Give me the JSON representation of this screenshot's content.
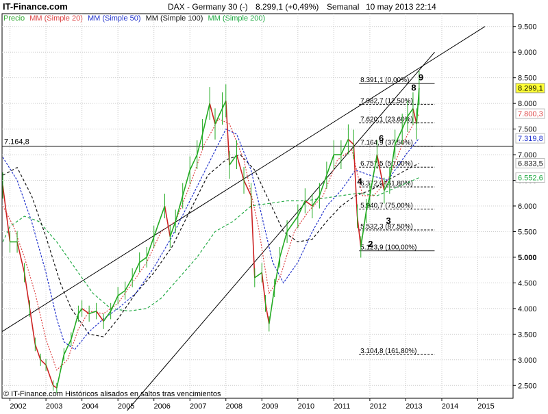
{
  "header": {
    "site": "IT-Finance.com",
    "title": "DAX - Germany 30 (-)",
    "price": "8.299,1 (+0,49%)",
    "period": "Semanal",
    "date": "10 may 2013 22:14"
  },
  "legend": [
    {
      "label": "Precio",
      "color": "#33aa33"
    },
    {
      "label": "MM (Simple 20)",
      "color": "#dd4444"
    },
    {
      "label": "MM (Simple 50)",
      "color": "#2233cc"
    },
    {
      "label": "MM (Simple 100)",
      "color": "#111111"
    },
    {
      "label": "MM (Simple 200)",
      "color": "#22aa44"
    }
  ],
  "footer": "© IT-Finance.com Históricos alisados en saltos tras vencimientos",
  "colors": {
    "price_up": "#22aa22",
    "price_down": "#cc2222",
    "sma20": "#dd4444",
    "sma50": "#2233cc",
    "sma100": "#111111",
    "sma200": "#22aa44",
    "grid": "#cccccc",
    "last_price_bg": "#ffff33"
  },
  "chart_data": {
    "type": "line",
    "x": {
      "range": [
        2001.78,
        2015.98
      ],
      "ticks": [
        2002,
        2003,
        2004,
        2005,
        2006,
        2007,
        2008,
        2009,
        2010,
        2011,
        2012,
        2013,
        2014,
        2015
      ],
      "tick_labels": [
        "2002",
        "2003",
        "2004",
        "2005",
        "2006",
        "2007",
        "2008",
        "2009",
        "2010",
        "2011",
        "2012",
        "2013",
        "2014",
        "2015"
      ]
    },
    "y": {
      "range": [
        2250,
        9750
      ],
      "ticks": [
        2500,
        3000,
        3500,
        4000,
        4500,
        5000,
        5500,
        6000,
        6500,
        7000,
        7500,
        8000,
        8500,
        9000,
        9500
      ],
      "tick_labels": [
        "2.500",
        "3.000",
        "3.500",
        "4.000",
        "4.500",
        "5.000",
        "5.500",
        "6.000",
        "6.500",
        "7.000",
        "7.500",
        "8.000",
        "8.500",
        "9.000",
        "9.500"
      ],
      "bold_tick": "5.000"
    },
    "grid": true,
    "legend_position": "top-left",
    "series": [
      {
        "name": "Precio",
        "key": "price",
        "values": [
          [
            2001.8,
            6400
          ],
          [
            2002.0,
            5300
          ],
          [
            2002.2,
            5300
          ],
          [
            2002.4,
            4700
          ],
          [
            2002.55,
            4000
          ],
          [
            2002.7,
            3300
          ],
          [
            2002.85,
            3000
          ],
          [
            2003.0,
            2900
          ],
          [
            2003.2,
            2500
          ],
          [
            2003.3,
            2450
          ],
          [
            2003.5,
            3100
          ],
          [
            2003.7,
            3400
          ],
          [
            2003.9,
            3900
          ],
          [
            2004.0,
            4000
          ],
          [
            2004.2,
            3900
          ],
          [
            2004.4,
            3950
          ],
          [
            2004.6,
            3750
          ],
          [
            2004.8,
            3950
          ],
          [
            2005.0,
            4250
          ],
          [
            2005.2,
            4350
          ],
          [
            2005.4,
            4600
          ],
          [
            2005.6,
            4900
          ],
          [
            2005.8,
            5000
          ],
          [
            2006.0,
            5400
          ],
          [
            2006.3,
            6000
          ],
          [
            2006.45,
            5400
          ],
          [
            2006.6,
            5700
          ],
          [
            2006.8,
            6200
          ],
          [
            2007.0,
            6700
          ],
          [
            2007.2,
            7000
          ],
          [
            2007.35,
            7400
          ],
          [
            2007.55,
            8000
          ],
          [
            2007.7,
            7600
          ],
          [
            2007.9,
            7900
          ],
          [
            2008.0,
            8050
          ],
          [
            2008.1,
            6800
          ],
          [
            2008.3,
            7000
          ],
          [
            2008.5,
            6500
          ],
          [
            2008.7,
            6200
          ],
          [
            2008.8,
            4600
          ],
          [
            2009.0,
            4700
          ],
          [
            2009.1,
            4100
          ],
          [
            2009.2,
            3700
          ],
          [
            2009.35,
            4400
          ],
          [
            2009.5,
            5000
          ],
          [
            2009.7,
            5500
          ],
          [
            2010.0,
            5800
          ],
          [
            2010.2,
            6100
          ],
          [
            2010.4,
            6000
          ],
          [
            2010.6,
            6200
          ],
          [
            2010.8,
            6600
          ],
          [
            2011.0,
            7000
          ],
          [
            2011.2,
            7000
          ],
          [
            2011.4,
            7300
          ],
          [
            2011.55,
            7200
          ],
          [
            2011.65,
            5800
          ],
          [
            2011.75,
            5200
          ],
          [
            2011.9,
            5900
          ],
          [
            2012.0,
            6200
          ],
          [
            2012.2,
            7000
          ],
          [
            2012.4,
            6300
          ],
          [
            2012.55,
            6500
          ],
          [
            2012.7,
            7200
          ],
          [
            2012.9,
            7500
          ],
          [
            2013.05,
            7750
          ],
          [
            2013.2,
            7900
          ],
          [
            2013.3,
            7600
          ],
          [
            2013.37,
            8299
          ]
        ]
      },
      {
        "name": "MM (Simple 20)",
        "key": "sma20",
        "values": [
          [
            2001.8,
            6000
          ],
          [
            2002.1,
            5600
          ],
          [
            2002.4,
            5000
          ],
          [
            2002.7,
            4300
          ],
          [
            2003.0,
            3400
          ],
          [
            2003.3,
            2800
          ],
          [
            2003.6,
            3000
          ],
          [
            2003.9,
            3600
          ],
          [
            2004.2,
            3950
          ],
          [
            2004.6,
            3900
          ],
          [
            2005.0,
            4100
          ],
          [
            2005.4,
            4500
          ],
          [
            2005.8,
            4900
          ],
          [
            2006.2,
            5500
          ],
          [
            2006.6,
            5700
          ],
          [
            2007.0,
            6400
          ],
          [
            2007.4,
            7200
          ],
          [
            2007.8,
            7700
          ],
          [
            2008.1,
            7600
          ],
          [
            2008.5,
            6900
          ],
          [
            2008.9,
            5600
          ],
          [
            2009.2,
            4300
          ],
          [
            2009.5,
            4600
          ],
          [
            2009.9,
            5500
          ],
          [
            2010.3,
            5900
          ],
          [
            2010.7,
            6200
          ],
          [
            2011.1,
            6900
          ],
          [
            2011.5,
            7100
          ],
          [
            2011.8,
            6200
          ],
          [
            2012.1,
            6200
          ],
          [
            2012.5,
            6500
          ],
          [
            2012.9,
            7200
          ],
          [
            2013.37,
            7800
          ]
        ]
      },
      {
        "name": "MM (Simple 50)",
        "key": "sma50",
        "values": [
          [
            2001.8,
            6950
          ],
          [
            2002.2,
            6500
          ],
          [
            2002.6,
            5700
          ],
          [
            2003.0,
            4700
          ],
          [
            2003.3,
            3800
          ],
          [
            2003.5,
            3350
          ],
          [
            2003.8,
            3200
          ],
          [
            2004.2,
            3550
          ],
          [
            2004.6,
            3800
          ],
          [
            2005.0,
            4000
          ],
          [
            2005.5,
            4300
          ],
          [
            2006.0,
            4800
          ],
          [
            2006.5,
            5400
          ],
          [
            2007.0,
            6100
          ],
          [
            2007.5,
            6800
          ],
          [
            2008.0,
            7500
          ],
          [
            2008.3,
            7400
          ],
          [
            2008.7,
            6700
          ],
          [
            2009.0,
            5800
          ],
          [
            2009.3,
            4900
          ],
          [
            2009.6,
            4500
          ],
          [
            2010.0,
            4900
          ],
          [
            2010.4,
            5500
          ],
          [
            2010.8,
            6000
          ],
          [
            2011.2,
            6300
          ],
          [
            2011.6,
            6700
          ],
          [
            2012.0,
            6600
          ],
          [
            2012.5,
            6500
          ],
          [
            2013.0,
            7000
          ],
          [
            2013.37,
            7320
          ]
        ]
      },
      {
        "name": "MM (Simple 100)",
        "key": "sma100",
        "values": [
          [
            2001.8,
            6600
          ],
          [
            2002.2,
            6750
          ],
          [
            2002.6,
            6200
          ],
          [
            2003.0,
            5400
          ],
          [
            2003.4,
            4500
          ],
          [
            2003.7,
            4000
          ],
          [
            2004.2,
            3500
          ],
          [
            2004.6,
            3450
          ],
          [
            2005.0,
            3800
          ],
          [
            2005.5,
            4300
          ],
          [
            2006.0,
            4700
          ],
          [
            2006.5,
            5200
          ],
          [
            2007.0,
            5900
          ],
          [
            2007.5,
            6600
          ],
          [
            2008.0,
            6900
          ],
          [
            2008.4,
            7000
          ],
          [
            2008.8,
            6700
          ],
          [
            2009.2,
            6100
          ],
          [
            2009.6,
            5500
          ],
          [
            2010.0,
            5300
          ],
          [
            2010.4,
            5350
          ],
          [
            2010.8,
            5700
          ],
          [
            2011.2,
            6000
          ],
          [
            2011.6,
            6200
          ],
          [
            2012.0,
            6300
          ],
          [
            2012.5,
            6500
          ],
          [
            2013.0,
            6700
          ],
          [
            2013.37,
            6833
          ]
        ]
      },
      {
        "name": "MM (Simple 200)",
        "key": "sma200",
        "values": [
          [
            2001.8,
            5300
          ],
          [
            2002.0,
            5600
          ],
          [
            2002.4,
            5800
          ],
          [
            2002.8,
            5700
          ],
          [
            2003.3,
            5300
          ],
          [
            2003.8,
            4800
          ],
          [
            2004.3,
            4300
          ],
          [
            2004.8,
            4000
          ],
          [
            2005.3,
            3950
          ],
          [
            2005.8,
            4000
          ],
          [
            2006.2,
            4200
          ],
          [
            2006.7,
            4600
          ],
          [
            2007.2,
            5000
          ],
          [
            2007.7,
            5500
          ],
          [
            2008.2,
            5700
          ],
          [
            2008.7,
            6000
          ],
          [
            2009.2,
            6050
          ],
          [
            2009.7,
            6100
          ],
          [
            2010.2,
            6100
          ],
          [
            2010.7,
            6150
          ],
          [
            2011.2,
            6200
          ],
          [
            2011.7,
            6250
          ],
          [
            2012.2,
            6200
          ],
          [
            2012.7,
            6350
          ],
          [
            2013.37,
            6553
          ]
        ]
      }
    ],
    "right_labels": [
      {
        "value": 8299.1,
        "label": "8.299,1",
        "style": "last"
      },
      {
        "value": 7800.3,
        "label": "7.800,3",
        "color": "#dd4444"
      },
      {
        "value": 7319.8,
        "label": "7.319,8",
        "color": "#2233cc"
      },
      {
        "value": 6833.5,
        "label": "6.833,5",
        "color": "#111111"
      },
      {
        "value": 6552.6,
        "label": "6.552,6",
        "color": "#22aa44"
      }
    ],
    "horizontal_line": {
      "value": 7164.8,
      "label": "7.164,8"
    },
    "fibonacci": {
      "x_start": 2011.7,
      "x_end": 2013.8,
      "levels": [
        {
          "value": 8391.1,
          "label": "8.391,1 (0,00%)"
        },
        {
          "value": 7982.7,
          "label": "7.982,7 (12,50%)"
        },
        {
          "value": 7620.1,
          "label": "7.620,1 (23,60%)"
        },
        {
          "value": 7164.9,
          "label": "7.164,9 (37,50%)"
        },
        {
          "value": 6757.5,
          "label": "6.757,5 (50,00%)"
        },
        {
          "value": 6372.0,
          "label": "6.372,0 (61,80%)"
        },
        {
          "value": 5940.7,
          "label": "5.940,7 (75,00%)"
        },
        {
          "value": 5532.3,
          "label": "5.532,3 (87,50%)"
        },
        {
          "value": 5123.9,
          "label": "5.123,9 (100,00%)"
        },
        {
          "value": 3104.8,
          "label": "3.104,8 (161,80%)"
        }
      ]
    },
    "trendlines": [
      {
        "x": [
          2001.78,
          2015.2
        ],
        "y": [
          3550,
          9500
        ]
      },
      {
        "x": [
          2005.0,
          2013.8
        ],
        "y": [
          1800,
          9000
        ]
      }
    ],
    "wave_labels": [
      {
        "label": "2",
        "x": 2011.95,
        "y": 5200
      },
      {
        "label": "3",
        "x": 2012.45,
        "y": 5650
      },
      {
        "label": "4",
        "x": 2011.65,
        "y": 6420
      },
      {
        "label": "6",
        "x": 2012.25,
        "y": 7260
      },
      {
        "label": "8",
        "x": 2013.15,
        "y": 8250
      },
      {
        "label": "9",
        "x": 2013.35,
        "y": 8450
      }
    ]
  }
}
